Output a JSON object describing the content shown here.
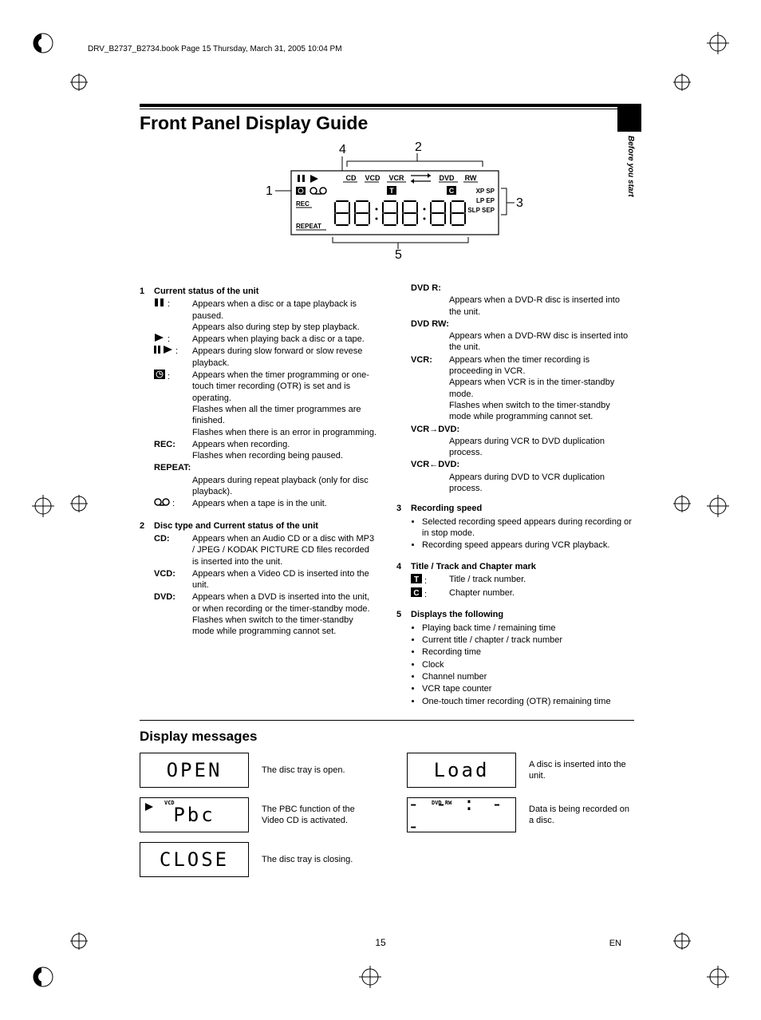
{
  "header_line": "DRV_B2737_B2734.book  Page 15  Thursday, March 31, 2005  10:04 PM",
  "side_text": "Before you start",
  "title": "Front Panel Display Guide",
  "diagram": {
    "callouts": [
      "1",
      "2",
      "3",
      "4",
      "5"
    ],
    "top_labels": [
      "CD",
      "VCD",
      "VCR",
      "DVD",
      "RW"
    ],
    "right_labels": [
      "XP SP",
      "LP EP",
      "SLP SEP"
    ],
    "left_labels_line2": [
      "REC"
    ],
    "left_labels_line3": [
      "REPEAT"
    ],
    "icons_line1": [
      "pause",
      "play"
    ],
    "tc_boxes": [
      "T",
      "C"
    ]
  },
  "section1": {
    "num": "1",
    "head": "Current status of the unit",
    "items": [
      {
        "icon": "pause",
        "text": "Appears when a disc or a tape playback is paused.\nAppears also during step by step playback."
      },
      {
        "icon": "play",
        "text": "Appears when playing back a disc or a tape."
      },
      {
        "icon": "pauseplay",
        "text": "Appears during slow forward or slow revese playback."
      },
      {
        "icon": "timer",
        "text": "Appears when the timer programming or one-touch timer recording (OTR) is set and is operating.\nFlashes when all the timer programmes are finished.\nFlashes when there is an error in programming."
      },
      {
        "label": "REC:",
        "text": "Appears when recording.\nFlashes when recording being paused."
      },
      {
        "label": "REPEAT:",
        "full": true,
        "text": "Appears during repeat playback (only for disc playback)."
      },
      {
        "icon": "tape",
        "text": "Appears when a tape is in the unit."
      }
    ]
  },
  "section2": {
    "num": "2",
    "head": "Disc type and Current status of the unit",
    "items": [
      {
        "label": "CD:",
        "text": "Appears when an Audio CD or a disc with MP3 / JPEG / KODAK PICTURE CD files recorded is inserted into the unit."
      },
      {
        "label": "VCD:",
        "text": "Appears when a Video CD is inserted into the unit."
      },
      {
        "label": "DVD:",
        "text": "Appears when a DVD is inserted into the unit, or when recording or the timer-standby mode.\nFlashes when switch to the timer-standby mode while programming cannot set."
      }
    ]
  },
  "section2b": {
    "items": [
      {
        "label": "DVD R:",
        "full": true,
        "text": "Appears when a DVD-R disc is inserted into the unit."
      },
      {
        "label": "DVD RW:",
        "full": true,
        "text": "Appears when a DVD-RW disc is inserted into the unit."
      },
      {
        "label": "VCR:",
        "text": "Appears when the timer recording is proceeding in VCR.\nAppears when VCR is in the timer-standby mode.\nFlashes when switch to the timer-standby mode while programming cannot set."
      },
      {
        "label": "VCR→DVD:",
        "full": true,
        "text": "Appears during VCR to DVD duplication process."
      },
      {
        "label": "VCR←DVD:",
        "full": true,
        "text": "Appears during DVD to VCR duplication process."
      }
    ]
  },
  "section3": {
    "num": "3",
    "head": "Recording speed",
    "bullets": [
      "Selected recording speed appears during recording or in stop mode.",
      "Recording speed appears during VCR playback."
    ]
  },
  "section4": {
    "num": "4",
    "head": "Title / Track and Chapter mark",
    "items": [
      {
        "icon": "T",
        "text": "Title / track number."
      },
      {
        "icon": "C",
        "text": "Chapter number."
      }
    ]
  },
  "section5": {
    "num": "5",
    "head": "Displays the following",
    "bullets": [
      "Playing back time / remaining time",
      "Current title / chapter / track number",
      "Recording time",
      "Clock",
      "Channel number",
      "VCR tape counter",
      "One-touch timer recording (OTR) remaining time"
    ]
  },
  "display_messages_title": "Display messages",
  "messages_left": [
    {
      "lcd": "OPEN",
      "desc": "The disc tray is open."
    },
    {
      "lcd": "Pbc",
      "tag": "VCD",
      "play": true,
      "desc": "The PBC function of the Video CD is activated."
    },
    {
      "lcd": "CLOSE",
      "desc": "The disc tray is closing."
    }
  ],
  "messages_right": [
    {
      "lcd": "Load",
      "desc": "A disc is inserted into the unit."
    },
    {
      "lcd": "- - : - -",
      "tag": "DVD   RW",
      "desc": "Data is being recorded on a disc."
    }
  ],
  "page_number": "15",
  "page_lang": "EN"
}
